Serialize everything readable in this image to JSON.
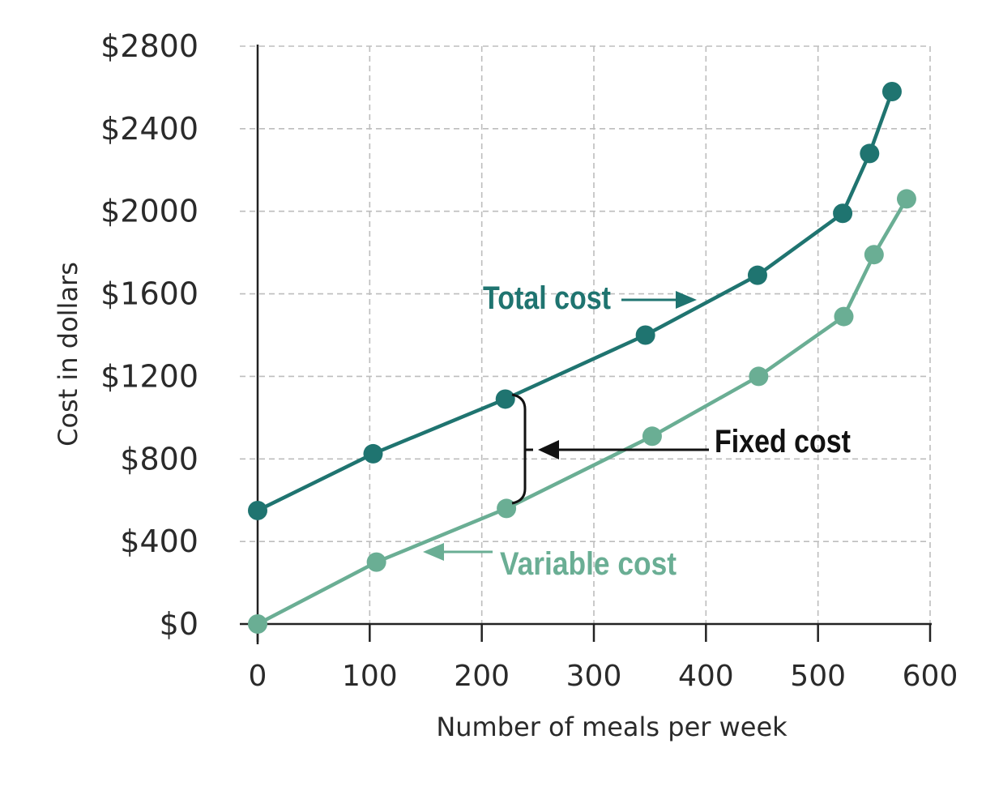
{
  "chart_data": {
    "type": "line",
    "xlabel": "Number of meals per week",
    "ylabel": "Cost in dollars",
    "xlim": [
      0,
      600
    ],
    "ylim": [
      0,
      2800
    ],
    "x_ticks": [
      0,
      100,
      200,
      300,
      400,
      500,
      600
    ],
    "y_ticks": [
      0,
      400,
      800,
      1200,
      1600,
      2000,
      2400,
      2800
    ],
    "x_tick_labels": [
      "0",
      "100",
      "200",
      "300",
      "400",
      "500",
      "600"
    ],
    "y_tick_labels": [
      "$0",
      "$400",
      "$800",
      "$1200",
      "$1600",
      "$2000",
      "$2400",
      "$2800"
    ],
    "grid": true,
    "series": [
      {
        "name": "Total cost",
        "color": "#1f7470",
        "points": [
          [
            0,
            550
          ],
          [
            103,
            825
          ],
          [
            221,
            1090
          ],
          [
            346,
            1400
          ],
          [
            446,
            1690
          ],
          [
            522,
            1990
          ],
          [
            546,
            2280
          ],
          [
            566,
            2580
          ]
        ]
      },
      {
        "name": "Variable cost",
        "color": "#6aae94",
        "points": [
          [
            0,
            0
          ],
          [
            106,
            300
          ],
          [
            222,
            560
          ],
          [
            352,
            910
          ],
          [
            447,
            1200
          ],
          [
            523,
            1490
          ],
          [
            550,
            1790
          ],
          [
            579,
            2060
          ]
        ]
      }
    ],
    "annotations": {
      "total_cost": "Total cost",
      "variable_cost": "Variable cost",
      "fixed_cost": "Fixed cost"
    }
  }
}
